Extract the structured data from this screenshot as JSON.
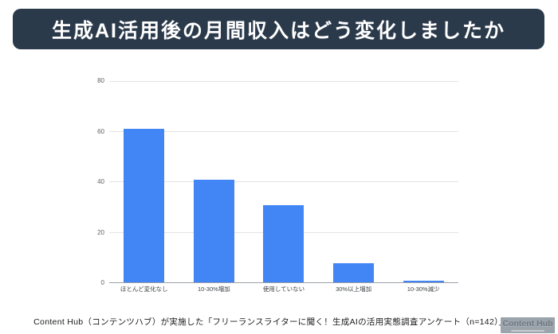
{
  "header": {
    "title": "生成AI活用後の月間収入はどう変化しましたか",
    "bg_color": "#2b3a4b",
    "text_color": "#ffffff"
  },
  "chart_data": {
    "type": "bar",
    "categories": [
      "ほとんど変化なし",
      "10-30%増加",
      "使用していない",
      "30%以上増加",
      "10-30%減少"
    ],
    "values": [
      61,
      41,
      31,
      8,
      1
    ],
    "title": "",
    "xlabel": "",
    "ylabel": "",
    "ylim": [
      0,
      80
    ],
    "yticks": [
      0,
      20,
      40,
      60,
      80
    ],
    "bar_color": "#4285f4",
    "gridline_color": "#e3e3e3",
    "baseline_color": "#9aa0a6",
    "grid": true,
    "legend_position": "none"
  },
  "footer": {
    "source_text": "Content Hub（コンテンツハブ）が実施した「フリーランスライターに聞く！生成AIの活用実態調査アンケート（n=142）」より"
  },
  "watermark": {
    "label": "Content Hub",
    "bg_color": "#9ba3ab",
    "text_color": "#6e7881"
  }
}
